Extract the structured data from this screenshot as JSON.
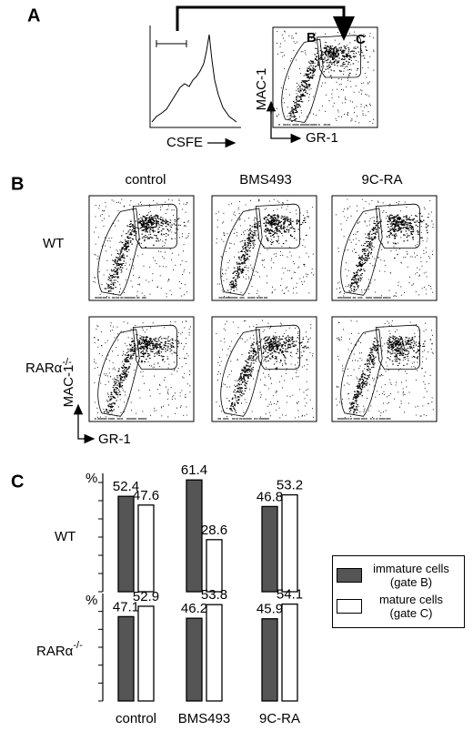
{
  "figure": {
    "panel_a": {
      "label": "A",
      "histogram_x_label": "CSFE",
      "y_label": "MAC-1",
      "x_label": "GR-1",
      "gates": [
        "B",
        "C"
      ]
    },
    "panel_b": {
      "label": "B",
      "columns": [
        "control",
        "BMS493",
        "9C-RA"
      ],
      "rows": [
        {
          "base": "WT"
        },
        {
          "base": "RARα",
          "superscript": "-/-"
        }
      ],
      "y_label": "MAC-1",
      "x_label": "GR-1"
    },
    "panel_c": {
      "label": "C"
    }
  },
  "chart_data": [
    {
      "type": "bar",
      "title": "WT",
      "y_label": "%",
      "ylim": [
        0,
        65
      ],
      "yticks": [
        0,
        10,
        20,
        30,
        40,
        50,
        60
      ],
      "series": [
        {
          "name": "immature cells (gate B)",
          "color": "#555555",
          "values": [
            52.4,
            61.4,
            46.8
          ]
        },
        {
          "name": "mature cells (gate C)",
          "color": "#ffffff",
          "values": [
            47.6,
            28.6,
            53.2
          ]
        }
      ]
    },
    {
      "type": "bar",
      "title": {
        "base": "RARα",
        "superscript": "-/-"
      },
      "y_label": "%",
      "ylim": [
        0,
        60
      ],
      "yticks": [
        0,
        10,
        20,
        30,
        40,
        50
      ],
      "categories": [
        "control",
        "BMS493",
        "9C-RA"
      ],
      "series": [
        {
          "color": "#555555",
          "values": [
            47.1,
            46.2,
            45.9
          ]
        },
        {
          "color": "#ffffff",
          "values": [
            52.9,
            53.8,
            54.1
          ]
        }
      ]
    }
  ]
}
